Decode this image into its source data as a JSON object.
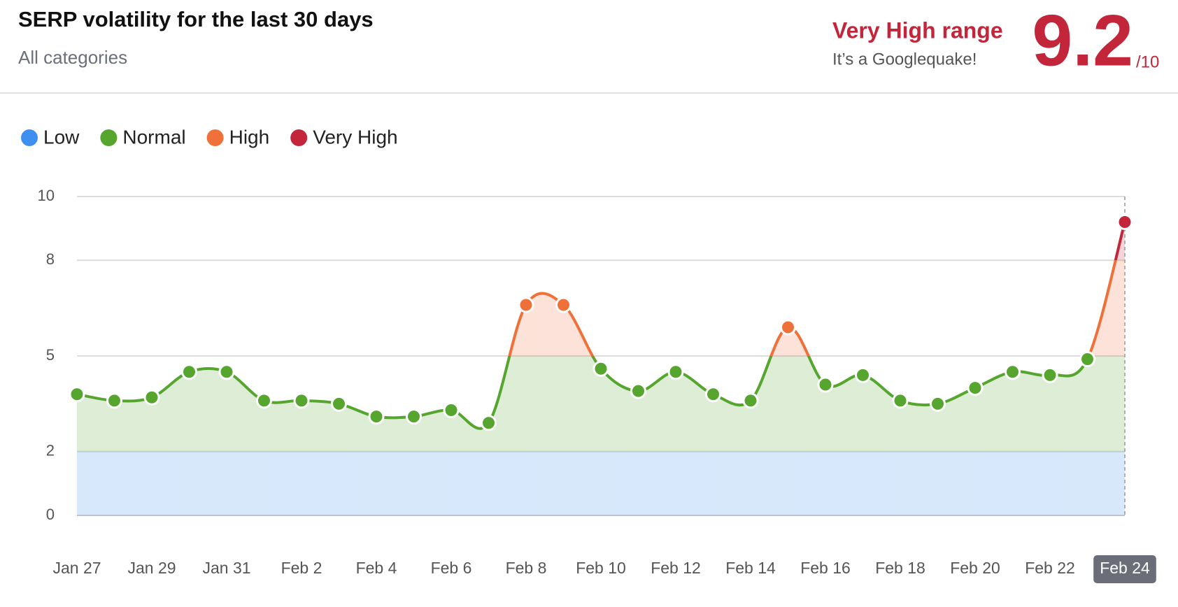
{
  "header": {
    "title": "SERP volatility for the last 30 days",
    "subtitle": "All categories",
    "range_label": "Very High range",
    "range_note": "It’s a Googlequake!",
    "score": "9.2",
    "score_suffix": "/10"
  },
  "chart_data": {
    "type": "line",
    "categories": [
      "Jan 27",
      null,
      "Jan 29",
      null,
      "Jan 31",
      null,
      "Feb 2",
      null,
      "Feb 4",
      null,
      "Feb 6",
      null,
      "Feb 8",
      null,
      "Feb 10",
      null,
      "Feb 12",
      null,
      "Feb 14",
      null,
      "Feb 16",
      null,
      "Feb 18",
      null,
      "Feb 20",
      null,
      "Feb 22",
      null,
      "Feb 24"
    ],
    "values": [
      3.8,
      3.6,
      3.7,
      4.5,
      4.5,
      3.6,
      3.6,
      3.5,
      3.1,
      3.1,
      3.3,
      2.9,
      6.6,
      6.6,
      4.6,
      3.9,
      4.5,
      3.8,
      3.6,
      5.9,
      4.1,
      4.4,
      3.6,
      3.5,
      4.0,
      4.5,
      4.4,
      4.9,
      9.2
    ],
    "bands": [
      {
        "name": "Low",
        "color": "#3e8ff0",
        "from": 0,
        "to": 2
      },
      {
        "name": "Normal",
        "color": "#55a52f",
        "from": 2,
        "to": 5
      },
      {
        "name": "High",
        "color": "#f07039",
        "from": 5,
        "to": 8
      },
      {
        "name": "Very High",
        "color": "#c3263a",
        "from": 8,
        "to": 10
      }
    ],
    "ylim": [
      0,
      10
    ],
    "yticks": [
      0,
      2,
      5,
      8,
      10
    ],
    "grid": true
  }
}
